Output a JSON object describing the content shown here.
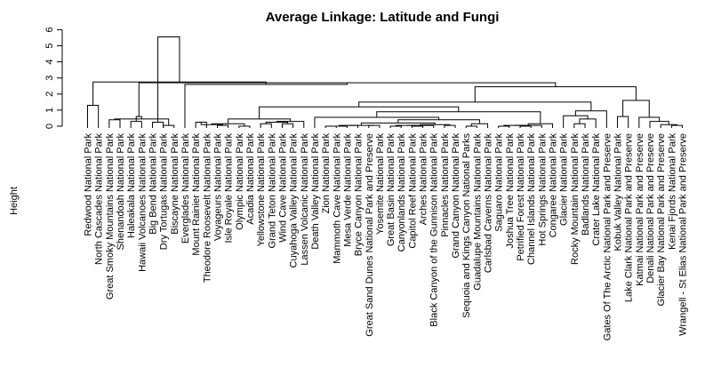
{
  "chart_data": {
    "type": "dendrogram",
    "title": "Average Linkage: Latitude and Fungi",
    "ylabel": "Height",
    "xlabel": "",
    "ylim": [
      0,
      6
    ],
    "yticks": [
      0,
      1,
      2,
      3,
      4,
      5,
      6
    ],
    "grid": false,
    "leaves": [
      "Redwood National Park",
      "North Cascades National Park",
      "Great Smoky Mountains National Park",
      "Shenandoah National Park",
      "Haleakala National Park",
      "Hawaii Volcanoes National Park",
      "Big Bend National Park",
      "Dry Tortugas National Park",
      "Biscayne National Park",
      "Everglades National Park",
      "Mount Rainier National Park",
      "Theodore Roosevelt National Park",
      "Voyageurs National Park",
      "Isle Royale National Park",
      "Olympic National Park",
      "Acadia National Park",
      "Yellowstone National Park",
      "Grand Teton National Park",
      "Wind Cave National Park",
      "Cuyahoga Valley National Park",
      "Lassen Volcanic National Park",
      "Death Valley National Park",
      "Zion National Park",
      "Mammoth Cave National Park",
      "Mesa Verde National Park",
      "Bryce Canyon National Park",
      "Great Sand Dunes National Park and Preserve",
      "Yosemite National Park",
      "Great Basin National Park",
      "Canyonlands National Park",
      "Capitol Reef National Park",
      "Arches National Park",
      "Black Canyon of the Gunnison National Park",
      "Pinnacles National Park",
      "Grand Canyon National Park",
      "Sequoia and Kings Canyon National Parks",
      "Guadalupe Mountains National Park",
      "Carlsbad Caverns National Park",
      "Saguaro National Park",
      "Joshua Tree National Park",
      "Petrified Forest National Park",
      "Channel Islands National Park",
      "Hot Springs National Park",
      "Congaree National Park",
      "Glacier National Park",
      "Rocky Mountain National Park",
      "Badlands National Park",
      "Crater Lake National Park",
      "Gates Of The Arctic National Park and Preserve",
      "Kobuk Valley National Park",
      "Lake Clark National Park and Preserve",
      "Katmai National Park and Preserve",
      "Denali National Park and Preserve",
      "Glacier Bay National Park and Preserve",
      "Kenai Fjords National Park",
      "Wrangell - St Elias National Park and Preserve"
    ],
    "merges": [
      {
        "l": 1,
        "r": 2,
        "h": 1.3
      },
      {
        "l": 3,
        "r": 4,
        "h": 0.4
      },
      {
        "l": 5,
        "r": 6,
        "h": 0.3
      },
      {
        "l": 8,
        "r": 9,
        "h": 0.05
      },
      {
        "l": 7,
        "r": 8,
        "h": 0.25
      },
      {
        "l": "n2",
        "r": "n4",
        "h": 0.45
      },
      {
        "l": "n3",
        "r": "n6",
        "h": 0.6
      },
      {
        "l": 11,
        "r": 12,
        "h": 0.25
      },
      {
        "l": 13,
        "r": 14,
        "h": 0.05
      },
      {
        "l": "n8",
        "r": "n9",
        "h": 0.1
      },
      {
        "l": 15,
        "r": 16,
        "h": 0.0
      },
      {
        "l": "n10",
        "r": "n11",
        "h": 0.15
      },
      {
        "l": 17,
        "r": 18,
        "h": 0.15
      },
      {
        "l": 19,
        "r": 20,
        "h": 0.15
      },
      {
        "l": "n13",
        "r": "n14",
        "h": 0.25
      },
      {
        "l": "n15",
        "r": 21,
        "h": 0.3
      },
      {
        "l": "n12",
        "r": "n16",
        "h": 0.45
      },
      {
        "l": 23,
        "r": 24,
        "h": 0.0
      },
      {
        "l": "n18",
        "r": 25,
        "h": 0.0
      },
      {
        "l": "n19",
        "r": 26,
        "h": 0.05
      },
      {
        "l": 27,
        "r": 28,
        "h": 0.05
      },
      {
        "l": "n20",
        "r": "n21",
        "h": 0.05
      },
      {
        "l": 29,
        "r": 30,
        "h": 0.0
      },
      {
        "l": 31,
        "r": 32,
        "h": 0.0
      },
      {
        "l": "n23",
        "r": "n24",
        "h": 0.05
      },
      {
        "l": "n25",
        "r": 33,
        "h": 0.05
      },
      {
        "l": 34,
        "r": 35,
        "h": 0.05
      },
      {
        "l": "n26",
        "r": "n27",
        "h": 0.1
      },
      {
        "l": "n22",
        "r": "n28",
        "h": 0.2
      },
      {
        "l": 36,
        "r": 37,
        "h": 0.0
      },
      {
        "l": "n30",
        "r": 38,
        "h": 0.15
      },
      {
        "l": "n29",
        "r": "n31",
        "h": 0.4
      },
      {
        "l": "n32",
        "r": 22,
        "h": 0.55
      },
      {
        "l": 39,
        "r": 40,
        "h": 0.0
      },
      {
        "l": 41,
        "r": 42,
        "h": 0.0
      },
      {
        "l": "n34",
        "r": "n35",
        "h": 0.05
      },
      {
        "l": "n36",
        "r": 43,
        "h": 0.05
      },
      {
        "l": "n37",
        "r": 44,
        "h": 0.15
      },
      {
        "l": "n33",
        "r": "n38",
        "h": 0.9
      },
      {
        "l": "n17",
        "r": "n39",
        "h": 1.2
      },
      {
        "l": 46,
        "r": 47,
        "h": 0.15
      },
      {
        "l": "n41",
        "r": 48,
        "h": 0.45
      },
      {
        "l": 45,
        "r": "n42",
        "h": 0.65
      },
      {
        "l": "n43",
        "r": 49,
        "h": 0.95
      },
      {
        "l": "n40",
        "r": "n44",
        "h": 1.5
      },
      {
        "l": 50,
        "r": 51,
        "h": 0.6
      },
      {
        "l": 55,
        "r": 56,
        "h": 0.05
      },
      {
        "l": 54,
        "r": "n47",
        "h": 0.1
      },
      {
        "l": 53,
        "r": "n48",
        "h": 0.3
      },
      {
        "l": 52,
        "r": "n49",
        "h": 0.55
      },
      {
        "l": "n46",
        "r": "n50",
        "h": 1.6
      },
      {
        "l": "n45",
        "r": "n51",
        "h": 2.45
      },
      {
        "l": "n7",
        "r": "n52",
        "h": 2.7
      },
      {
        "l": 10,
        "r": "n53",
        "h": 2.6
      },
      {
        "l": "n1",
        "r": "n54",
        "h": 2.75
      },
      {
        "l": "n5",
        "r": "n55",
        "h": 5.55
      }
    ]
  }
}
